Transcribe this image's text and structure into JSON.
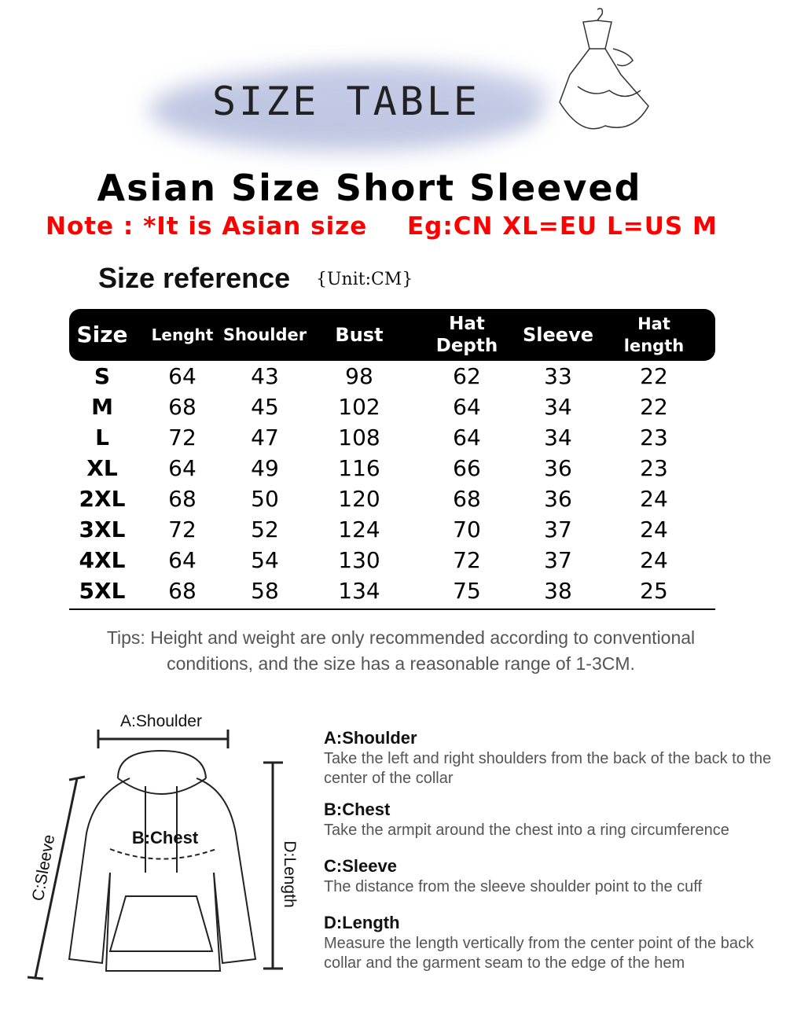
{
  "banner": {
    "title": "SIZE TABLE"
  },
  "header": {
    "title": "Asian Size Short Sleeved",
    "note": "Note : *It is Asian size",
    "example": "Eg:CN XL=EU L=US M"
  },
  "reference": {
    "label": "Size reference",
    "unit": "{Unit:CM}"
  },
  "table": {
    "columns": [
      "Size",
      "Lenght",
      "Shoulder",
      "Bust",
      "Hat Depth",
      "Sleeve",
      "Hat length"
    ],
    "rows": [
      [
        "S",
        64,
        43,
        98,
        62,
        33,
        22
      ],
      [
        "M",
        68,
        45,
        102,
        64,
        34,
        22
      ],
      [
        "L",
        72,
        47,
        108,
        64,
        34,
        23
      ],
      [
        "XL",
        64,
        49,
        116,
        66,
        36,
        23
      ],
      [
        "2XL",
        68,
        50,
        120,
        68,
        36,
        24
      ],
      [
        "3XL",
        72,
        52,
        124,
        70,
        37,
        24
      ],
      [
        "4XL",
        64,
        54,
        130,
        72,
        37,
        24
      ],
      [
        "5XL",
        68,
        58,
        134,
        75,
        38,
        25
      ]
    ]
  },
  "tips": "Tips: Height and weight are only recommended according to conventional conditions, and the size has a reasonable range of 1-3CM.",
  "diagram": {
    "shoulder": "A:Shoulder",
    "chest": "B:Chest",
    "sleeve": "C:Sleeve",
    "length": "D:Length"
  },
  "definitions": [
    {
      "title": "A:Shoulder",
      "text": "Take the left and right shoulders from the back of the back to the center of the collar"
    },
    {
      "title": "B:Chest",
      "text": "Take the armpit around the chest into a ring circumference"
    },
    {
      "title": "C:Sleeve",
      "text": "The distance from the sleeve shoulder point to the cuff"
    },
    {
      "title": "D:Length",
      "text": "Measure the length vertically from the center point of the back collar and the garment seam to the edge of the hem"
    }
  ]
}
